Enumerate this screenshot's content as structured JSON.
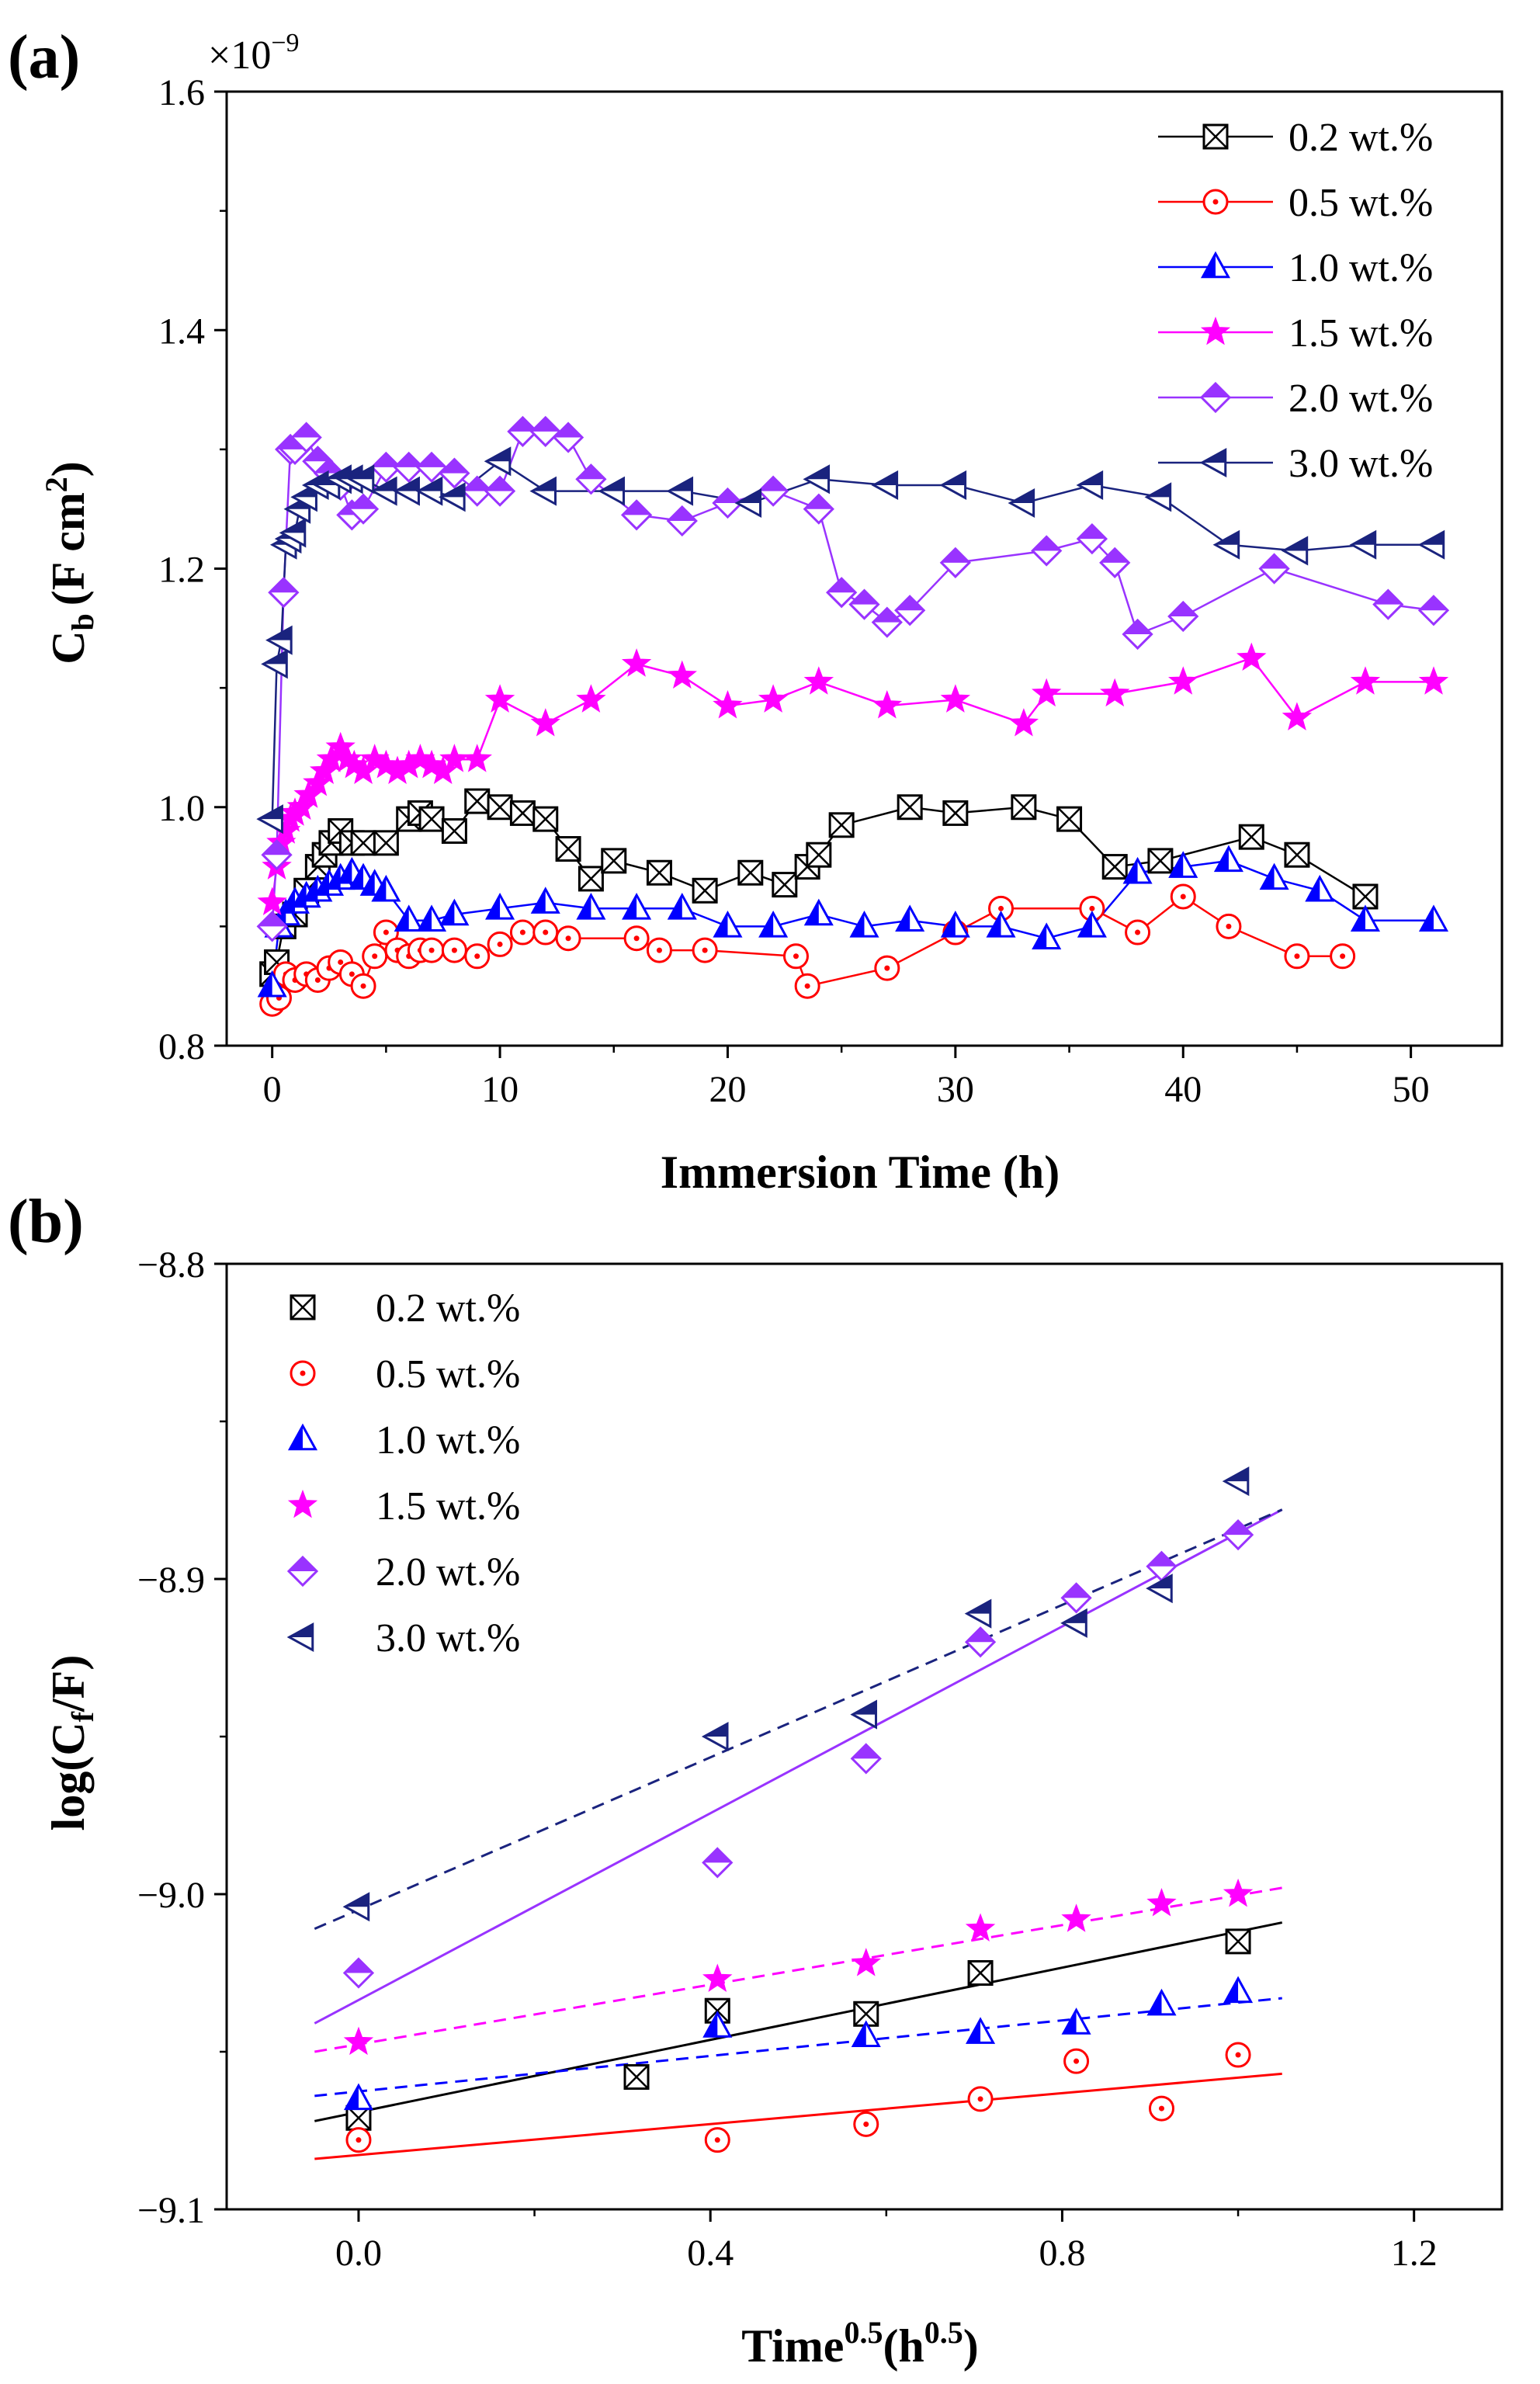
{
  "chart_data": [
    {
      "panel": "(a)",
      "type": "line",
      "xlabel": "Immersion Time (h)",
      "ylabel_main": "C",
      "ylabel_sub": "b",
      "ylabel_unit": "(F cm",
      "ylabel_sup": "2",
      "ylabel_close": ")",
      "multiplier_text": "×10",
      "multiplier_exp": "−9",
      "xlim": [
        -2,
        54
      ],
      "ylim": [
        0.8,
        1.6
      ],
      "xticks": [
        0,
        10,
        20,
        30,
        40,
        50
      ],
      "xtick_labels": [
        "0",
        "10",
        "20",
        "30",
        "40",
        "50"
      ],
      "yticks": [
        0.8,
        1.0,
        1.2,
        1.4,
        1.6
      ],
      "ytick_labels": [
        "0.8",
        "1.0",
        "1.2",
        "1.4",
        "1.6"
      ],
      "legend_position": "top-right",
      "series": [
        {
          "name": "0.2 wt.%",
          "color": "#000000",
          "marker": "box-x",
          "x": [
            0,
            0.2,
            0.5,
            1,
            1.5,
            2,
            2.3,
            2.6,
            3,
            3.5,
            4,
            5,
            6,
            6.5,
            7,
            8,
            9,
            10,
            11,
            12,
            13,
            14,
            15,
            17,
            19,
            21,
            22.5,
            23.5,
            24,
            25,
            28,
            30,
            33,
            35,
            37,
            39,
            43,
            45,
            48
          ],
          "y": [
            0.86,
            0.87,
            0.9,
            0.91,
            0.93,
            0.95,
            0.96,
            0.97,
            0.98,
            0.97,
            0.97,
            0.97,
            0.99,
            0.995,
            0.99,
            0.98,
            1.005,
            1.0,
            0.995,
            0.99,
            0.965,
            0.94,
            0.955,
            0.945,
            0.93,
            0.945,
            0.935,
            0.95,
            0.96,
            0.985,
            1.0,
            0.995,
            1.0,
            0.99,
            0.95,
            0.955,
            0.975,
            0.96,
            0.925
          ]
        },
        {
          "name": "0.5 wt.%",
          "color": "#ff0000",
          "marker": "circle-dot",
          "x": [
            0,
            0.3,
            0.6,
            1,
            1.5,
            2,
            2.5,
            3,
            3.5,
            4,
            4.5,
            5,
            5.5,
            6,
            6.5,
            7,
            8,
            9,
            10,
            11,
            12,
            13,
            16,
            17,
            19,
            23,
            23.5,
            27,
            30,
            32,
            36,
            38,
            40,
            42,
            45,
            47
          ],
          "y": [
            0.835,
            0.84,
            0.86,
            0.855,
            0.86,
            0.855,
            0.865,
            0.87,
            0.86,
            0.85,
            0.875,
            0.895,
            0.88,
            0.875,
            0.88,
            0.88,
            0.88,
            0.875,
            0.885,
            0.895,
            0.895,
            0.89,
            0.89,
            0.88,
            0.88,
            0.875,
            0.85,
            0.865,
            0.895,
            0.915,
            0.915,
            0.895,
            0.925,
            0.9,
            0.875,
            0.875
          ]
        },
        {
          "name": "1.0 wt.%",
          "color": "#0000ff",
          "marker": "triangle-half",
          "x": [
            0,
            0.3,
            0.6,
            1,
            1.5,
            2,
            2.5,
            3,
            3.5,
            4,
            4.5,
            5,
            6,
            7,
            8,
            10,
            12,
            14,
            16,
            18,
            20,
            22,
            24,
            26,
            28,
            30,
            32,
            34,
            36,
            38,
            40,
            42,
            44,
            46,
            48,
            51
          ],
          "y": [
            0.85,
            0.9,
            0.91,
            0.92,
            0.925,
            0.93,
            0.935,
            0.94,
            0.945,
            0.94,
            0.935,
            0.93,
            0.905,
            0.905,
            0.91,
            0.915,
            0.92,
            0.915,
            0.915,
            0.915,
            0.9,
            0.9,
            0.91,
            0.9,
            0.905,
            0.9,
            0.9,
            0.89,
            0.9,
            0.945,
            0.95,
            0.955,
            0.94,
            0.93,
            0.905,
            0.905
          ]
        },
        {
          "name": "1.5 wt.%",
          "color": "#ff00ff",
          "marker": "star",
          "x": [
            0,
            0.2,
            0.4,
            0.6,
            0.8,
            1,
            1.3,
            1.6,
            2,
            2.3,
            2.6,
            3,
            3.3,
            3.6,
            4,
            4.5,
            5,
            5.5,
            6,
            6.5,
            7,
            7.5,
            8,
            9,
            10,
            12,
            14,
            16,
            18,
            20,
            22,
            24,
            27,
            30,
            33,
            34,
            37,
            40,
            43,
            45,
            48,
            51
          ],
          "y": [
            0.92,
            0.95,
            0.97,
            0.98,
            0.99,
            0.995,
            1.0,
            1.01,
            1.02,
            1.03,
            1.04,
            1.05,
            1.04,
            1.035,
            1.03,
            1.04,
            1.035,
            1.03,
            1.035,
            1.04,
            1.035,
            1.03,
            1.04,
            1.04,
            1.09,
            1.07,
            1.09,
            1.12,
            1.11,
            1.085,
            1.09,
            1.105,
            1.085,
            1.09,
            1.07,
            1.095,
            1.095,
            1.105,
            1.125,
            1.075,
            1.105,
            1.105
          ]
        },
        {
          "name": "2.0 wt.%",
          "color": "#9933ff",
          "marker": "diamond-half",
          "x": [
            0,
            0.2,
            0.5,
            0.8,
            1,
            1.5,
            2,
            2.5,
            3,
            3.5,
            4,
            5,
            6,
            7,
            8,
            9,
            10,
            11,
            12,
            13,
            14,
            16,
            18,
            20,
            22,
            24,
            25,
            26,
            27,
            28,
            30,
            34,
            36,
            37,
            38,
            40,
            44,
            49,
            51
          ],
          "y": [
            0.9,
            0.96,
            1.18,
            1.3,
            1.3,
            1.31,
            1.29,
            1.28,
            1.27,
            1.245,
            1.25,
            1.285,
            1.285,
            1.285,
            1.28,
            1.265,
            1.265,
            1.315,
            1.315,
            1.31,
            1.275,
            1.245,
            1.24,
            1.255,
            1.265,
            1.25,
            1.18,
            1.17,
            1.155,
            1.165,
            1.205,
            1.215,
            1.225,
            1.205,
            1.145,
            1.16,
            1.2,
            1.17,
            1.165
          ]
        },
        {
          "name": "3.0 wt.%",
          "color": "#1a237e",
          "marker": "triangle-left-half",
          "x": [
            0,
            0.2,
            0.4,
            0.6,
            0.8,
            1,
            1.2,
            1.5,
            2,
            2.5,
            3,
            3.5,
            4,
            5,
            6,
            7,
            8,
            10,
            12,
            15,
            18,
            21,
            24,
            27,
            30,
            33,
            36,
            39,
            42,
            45,
            48,
            51
          ],
          "y": [
            0.99,
            1.12,
            1.14,
            1.22,
            1.225,
            1.23,
            1.25,
            1.26,
            1.27,
            1.27,
            1.275,
            1.275,
            1.275,
            1.265,
            1.265,
            1.265,
            1.26,
            1.29,
            1.265,
            1.265,
            1.265,
            1.255,
            1.275,
            1.27,
            1.27,
            1.255,
            1.27,
            1.26,
            1.22,
            1.215,
            1.22,
            1.22
          ]
        }
      ]
    },
    {
      "panel": "(b)",
      "type": "scatter",
      "xlabel_main": "Time",
      "xlabel_sup": "0.5",
      "xlabel_unit": "(h",
      "xlabel_unit_sup": "0.5",
      "xlabel_close": ")",
      "ylabel_main": "log(C",
      "ylabel_sub": "f",
      "ylabel_close": "/F)",
      "xlim": [
        -0.15,
        1.3
      ],
      "ylim": [
        -9.1,
        -8.8
      ],
      "xticks": [
        0.0,
        0.4,
        0.8,
        1.2
      ],
      "xtick_labels": [
        "0.0",
        "0.4",
        "0.8",
        "1.2"
      ],
      "yticks": [
        -9.1,
        -9.0,
        -8.9,
        -8.8
      ],
      "ytick_labels": [
        "−9.1",
        "−9.0",
        "−8.9",
        "−8.8"
      ],
      "legend_position": "top-left",
      "series": [
        {
          "name": "0.2 wt.%",
          "color": "#000000",
          "marker": "box-x",
          "x": [
            0.0,
            0.316,
            0.408,
            0.577,
            0.707,
            1.0
          ],
          "y": [
            -9.071,
            -9.058,
            -9.037,
            -9.038,
            -9.025,
            -9.015
          ],
          "fit": {
            "x": [
              -0.05,
              1.05
            ],
            "y": [
              -9.072,
              -9.009
            ],
            "dash": "solid"
          }
        },
        {
          "name": "0.5 wt.%",
          "color": "#ff0000",
          "marker": "circle-dot",
          "x": [
            0.0,
            0.408,
            0.577,
            0.707,
            0.816,
            0.913,
            1.0
          ],
          "y": [
            -9.078,
            -9.078,
            -9.073,
            -9.065,
            -9.053,
            -9.068,
            -9.051
          ],
          "fit": {
            "x": [
              -0.05,
              1.05
            ],
            "y": [
              -9.084,
              -9.057
            ],
            "dash": "solid"
          }
        },
        {
          "name": "1.0 wt.%",
          "color": "#0000ff",
          "marker": "triangle-half",
          "x": [
            0.0,
            0.408,
            0.577,
            0.707,
            0.816,
            0.913,
            1.0
          ],
          "y": [
            -9.065,
            -9.042,
            -9.045,
            -9.044,
            -9.041,
            -9.035,
            -9.031
          ],
          "fit": {
            "x": [
              -0.05,
              1.05
            ],
            "y": [
              -9.064,
              -9.033
            ],
            "dash": "dashed"
          }
        },
        {
          "name": "1.5 wt.%",
          "color": "#ff00ff",
          "marker": "star",
          "x": [
            0.0,
            0.408,
            0.577,
            0.707,
            0.816,
            0.913,
            1.0
          ],
          "y": [
            -9.047,
            -9.027,
            -9.022,
            -9.011,
            -9.008,
            -9.003,
            -9.0
          ],
          "fit": {
            "x": [
              -0.05,
              1.05
            ],
            "y": [
              -9.05,
              -8.998
            ],
            "dash": "dashed"
          }
        },
        {
          "name": "2.0 wt.%",
          "color": "#9933ff",
          "marker": "diamond-half",
          "x": [
            0.0,
            0.408,
            0.577,
            0.707,
            0.816,
            0.913,
            1.0
          ],
          "y": [
            -9.025,
            -8.99,
            -8.957,
            -8.92,
            -8.906,
            -8.896,
            -8.886
          ],
          "fit": {
            "x": [
              -0.05,
              1.05
            ],
            "y": [
              -9.041,
              -8.878
            ],
            "dash": "solid"
          }
        },
        {
          "name": "3.0 wt.%",
          "color": "#1a237e",
          "marker": "triangle-left-half",
          "x": [
            0.0,
            0.408,
            0.577,
            0.707,
            0.816,
            0.913,
            1.0
          ],
          "y": [
            -9.004,
            -8.95,
            -8.943,
            -8.911,
            -8.914,
            -8.903,
            -8.869
          ],
          "fit": {
            "x": [
              -0.05,
              1.05
            ],
            "y": [
              -9.011,
              -8.878
            ],
            "dash": "dashed"
          }
        }
      ]
    }
  ]
}
